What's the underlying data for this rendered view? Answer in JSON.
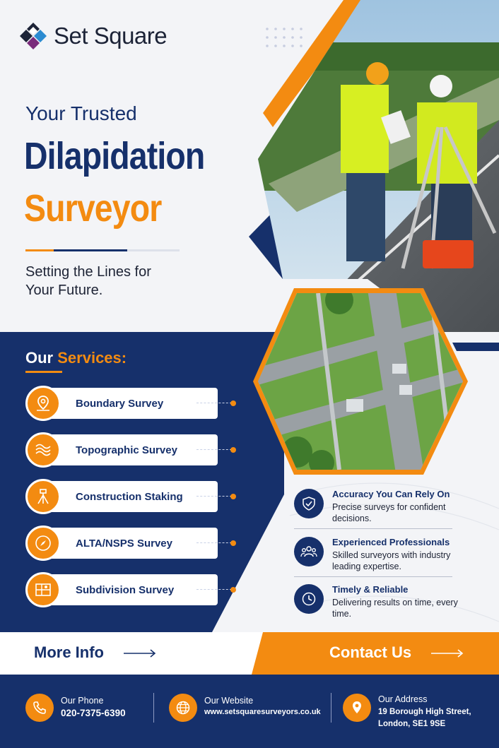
{
  "brand": {
    "name": "Set Square"
  },
  "hero": {
    "kicker": "Your Trusted",
    "headline_line1": "Dilapidation",
    "headline_line2": "Surveyor",
    "tagline": "Setting the Lines for Your Future."
  },
  "services": {
    "title_part1": "Our",
    "title_part2": "Services:",
    "items": [
      {
        "label": "Boundary Survey",
        "icon": "map-pin-icon"
      },
      {
        "label": "Topographic Survey",
        "icon": "contour-map-icon"
      },
      {
        "label": "Construction Staking",
        "icon": "tripod-icon"
      },
      {
        "label": "ALTA/NSPS Survey",
        "icon": "compass-icon"
      },
      {
        "label": "Subdivision Survey",
        "icon": "plot-map-icon"
      }
    ]
  },
  "features": [
    {
      "title": "Accuracy You Can Rely On",
      "desc": "Precise surveys for confident decisions.",
      "icon": "shield-check-icon"
    },
    {
      "title": "Experienced Professionals",
      "desc": "Skilled surveyors with industry leading expertise.",
      "icon": "team-icon"
    },
    {
      "title": "Timely & Reliable",
      "desc": "Delivering results on time, every time.",
      "icon": "clock-icon"
    }
  ],
  "cta": {
    "more_info": "More Info",
    "contact_us": "Contact Us"
  },
  "footer": {
    "phone_label": "Our Phone",
    "phone_value": "020-7375-6390",
    "website_label": "Our Website",
    "website_value": "www.setsquaresurveyors.co.uk",
    "address_label": "Our Address",
    "address_line1": "19 Borough High Street,",
    "address_line2": "London, SE1 9SE"
  },
  "colors": {
    "navy": "#16306b",
    "orange": "#f38b11",
    "background": "#f3f4f7"
  }
}
